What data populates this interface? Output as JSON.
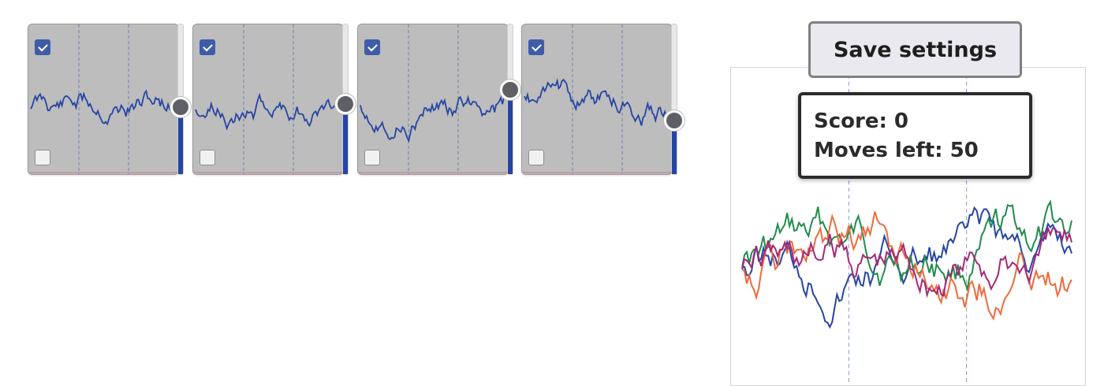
{
  "colors": {
    "panel_bg": "#bdbdbd",
    "panel_line": "#2645a3",
    "slider_fill": "#2645a3",
    "knob": "#5f6066",
    "series_colors": [
      "#2645a3",
      "#1f8c4a",
      "#ef6a3a",
      "#a3287a"
    ]
  },
  "panels": [
    {
      "top_checked": true,
      "bottom_checked": false,
      "slider_value": 0.45,
      "seed": 11
    },
    {
      "top_checked": true,
      "bottom_checked": false,
      "slider_value": 0.47,
      "seed": 23
    },
    {
      "top_checked": true,
      "bottom_checked": false,
      "slider_value": 0.56,
      "seed": 37
    },
    {
      "top_checked": true,
      "bottom_checked": false,
      "slider_value": 0.36,
      "seed": 53
    }
  ],
  "save_button": {
    "label": "Save settings"
  },
  "score": {
    "score_label": "Score: 0",
    "moves_label": "Moves left: 50"
  },
  "chart_data": {
    "type": "line",
    "series": [
      {
        "seed": 5
      },
      {
        "seed": 17
      },
      {
        "seed": 29
      },
      {
        "seed": 41
      }
    ]
  }
}
